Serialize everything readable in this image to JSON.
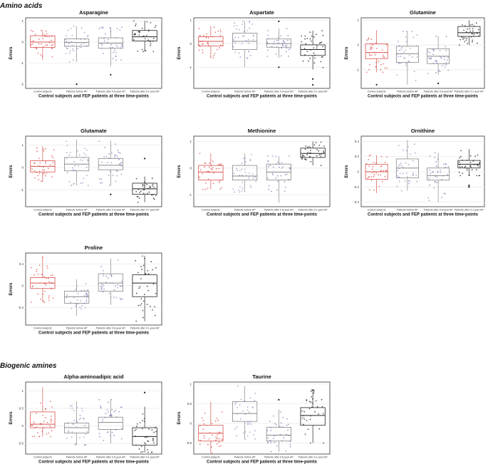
{
  "sections": [
    {
      "id": "amino",
      "label": "Amino acids"
    },
    {
      "id": "biogenic",
      "label": "Biogenic amines"
    }
  ],
  "colors": {
    "control": "#d9534f",
    "before": "#8e8ec0",
    "mid": "#7d7db8",
    "after": "#222222",
    "box_grey": "#888888",
    "grid": "#ebebeb"
  },
  "chart_data": [
    {
      "type": "boxplot",
      "title": "Asparagine",
      "xlabel": "Control subjects and FEP patients at three time-points",
      "ylabel": "Errors",
      "categories": [
        "Control subjects",
        "Patients before AP",
        "Patients after 0.6-year AP",
        "Patients after 0.1-year AP"
      ],
      "yticks": [
        1,
        0,
        -1,
        -2
      ],
      "ylim": [
        -2.2,
        1.15
      ],
      "boxes": [
        {
          "q1": -0.25,
          "median": 0.0,
          "q3": 0.3,
          "wlo": -0.85,
          "whi": 0.55,
          "outliers": []
        },
        {
          "q1": -0.2,
          "median": -0.02,
          "q3": 0.15,
          "wlo": -0.95,
          "whi": 0.75,
          "outliers": [
            -2.0
          ]
        },
        {
          "q1": -0.3,
          "median": -0.05,
          "q3": 0.2,
          "wlo": -1.15,
          "whi": 0.7,
          "outliers": [
            -1.55
          ]
        },
        {
          "q1": 0.05,
          "median": 0.25,
          "q3": 0.55,
          "wlo": -0.45,
          "whi": 1.0,
          "outliers": []
        }
      ]
    },
    {
      "type": "boxplot",
      "title": "Aspartate",
      "xlabel": "Control subjects and FEP patients at three time-points",
      "ylabel": "Errors",
      "categories": [
        "Control subjects",
        "Patients before AP",
        "Patients after 0.6-year AP",
        "Patients after 0.1-year AP"
      ],
      "yticks": [
        1,
        0,
        -1
      ],
      "ylim": [
        -1.9,
        1.1
      ],
      "boxes": [
        {
          "q1": -0.1,
          "median": 0.1,
          "q3": 0.3,
          "wlo": -0.6,
          "whi": 0.75,
          "outliers": []
        },
        {
          "q1": -0.25,
          "median": 0.1,
          "q3": 0.45,
          "wlo": -1.0,
          "whi": 0.95,
          "outliers": []
        },
        {
          "q1": -0.15,
          "median": 0.0,
          "q3": 0.2,
          "wlo": -0.6,
          "whi": 0.65,
          "outliers": [
            -1.0,
            0.95
          ]
        },
        {
          "q1": -0.5,
          "median": -0.25,
          "q3": -0.05,
          "wlo": -1.1,
          "whi": 0.55,
          "outliers": [
            -1.5,
            -1.75
          ]
        }
      ]
    },
    {
      "type": "boxplot",
      "title": "Glutamine",
      "xlabel": "Control subjects and FEP patients at three time-points",
      "ylabel": "Errors",
      "categories": [
        "Control subjects",
        "Patients before AP",
        "Patients after 0.6-year AP",
        "Patients after 0.1-year AP"
      ],
      "yticks": [
        1,
        0,
        -1
      ],
      "ylim": [
        -1.75,
        1.1
      ],
      "boxes": [
        {
          "q1": -0.55,
          "median": -0.3,
          "q3": 0.05,
          "wlo": -1.1,
          "whi": 0.6,
          "outliers": [
            -1.6
          ]
        },
        {
          "q1": -0.7,
          "median": -0.35,
          "q3": -0.05,
          "wlo": -1.6,
          "whi": 0.55,
          "outliers": []
        },
        {
          "q1": -0.75,
          "median": -0.45,
          "q3": -0.15,
          "wlo": -1.2,
          "whi": 0.35,
          "outliers": [
            -1.55
          ]
        },
        {
          "q1": 0.35,
          "median": 0.5,
          "q3": 0.75,
          "wlo": 0.0,
          "whi": 1.0,
          "outliers": []
        }
      ]
    },
    {
      "type": "boxplot",
      "title": "Glutamate",
      "xlabel": "Control subjects and FEP patients at three time-points",
      "ylabel": "Errors",
      "categories": [
        "Control subjects",
        "Patients before AP",
        "Patients after 0.6-year AP",
        "Patients after 0.1-year AP"
      ],
      "yticks": [
        1,
        0,
        -1
      ],
      "ylim": [
        -1.75,
        1.4
      ],
      "boxes": [
        {
          "q1": -0.2,
          "median": 0.05,
          "q3": 0.3,
          "wlo": -0.65,
          "whi": 0.95,
          "outliers": []
        },
        {
          "q1": -0.15,
          "median": 0.15,
          "q3": 0.45,
          "wlo": -0.8,
          "whi": 1.25,
          "outliers": []
        },
        {
          "q1": -0.1,
          "median": 0.1,
          "q3": 0.4,
          "wlo": -0.8,
          "whi": 1.2,
          "outliers": [
            -1.2
          ]
        },
        {
          "q1": -1.2,
          "median": -0.95,
          "q3": -0.7,
          "wlo": -1.55,
          "whi": -0.4,
          "outliers": [
            0.4
          ]
        }
      ]
    },
    {
      "type": "boxplot",
      "title": "Methionine",
      "xlabel": "Control subjects and FEP patients at three time-points",
      "ylabel": "Errors",
      "categories": [
        "Control subjects",
        "Patients before AP",
        "Patients after 0.6-year AP",
        "Patients after 0.1-year AP"
      ],
      "yticks": [
        1,
        0,
        -1
      ],
      "ylim": [
        -1.45,
        1.2
      ],
      "boxes": [
        {
          "q1": -0.45,
          "median": -0.15,
          "q3": 0.1,
          "wlo": -0.8,
          "whi": 0.55,
          "outliers": []
        },
        {
          "q1": -0.45,
          "median": -0.3,
          "q3": 0.1,
          "wlo": -0.9,
          "whi": 0.55,
          "outliers": []
        },
        {
          "q1": -0.45,
          "median": -0.15,
          "q3": 0.15,
          "wlo": -1.3,
          "whi": 0.45,
          "outliers": []
        },
        {
          "q1": 0.4,
          "median": 0.55,
          "q3": 0.75,
          "wlo": 0.1,
          "whi": 1.0,
          "outliers": []
        }
      ]
    },
    {
      "type": "boxplot",
      "title": "Ornithine",
      "xlabel": "Control subjects and FEP patients at three time-points",
      "ylabel": "Errors",
      "categories": [
        "Control subjects",
        "Patients before AP",
        "Patients after 0.6-year AP",
        "Patients after 0.1-year AP"
      ],
      "yticks": [
        0.4,
        0.2,
        0.0,
        -0.2,
        -0.4
      ],
      "ylim": [
        -0.46,
        0.47
      ],
      "boxes": [
        {
          "q1": -0.1,
          "median": 0.0,
          "q3": 0.1,
          "wlo": -0.28,
          "whi": 0.22,
          "outliers": []
        },
        {
          "q1": -0.08,
          "median": 0.05,
          "q3": 0.17,
          "wlo": -0.25,
          "whi": 0.42,
          "outliers": []
        },
        {
          "q1": -0.11,
          "median": -0.05,
          "q3": 0.05,
          "wlo": -0.4,
          "whi": 0.25,
          "outliers": []
        },
        {
          "q1": 0.05,
          "median": 0.1,
          "q3": 0.15,
          "wlo": -0.05,
          "whi": 0.3,
          "outliers": [
            -0.18,
            -0.2
          ]
        }
      ]
    },
    {
      "type": "boxplot",
      "title": "Proline",
      "xlabel": "Control subjects and FEP patients at three time-points",
      "ylabel": "Errors",
      "categories": [
        "Control subjects",
        "Patients before AP",
        "Patients after 0.6-year AP",
        "Patients after 0.1-year AP"
      ],
      "yticks": [
        0.4,
        0.0,
        -0.4
      ],
      "ylim": [
        -0.72,
        0.6
      ],
      "boxes": [
        {
          "q1": -0.05,
          "median": 0.05,
          "q3": 0.15,
          "wlo": -0.3,
          "whi": 0.55,
          "outliers": []
        },
        {
          "q1": -0.32,
          "median": -0.2,
          "q3": -0.1,
          "wlo": -0.55,
          "whi": 0.12,
          "outliers": []
        },
        {
          "q1": -0.1,
          "median": 0.05,
          "q3": 0.22,
          "wlo": -0.35,
          "whi": 0.5,
          "outliers": []
        },
        {
          "q1": -0.2,
          "median": 0.05,
          "q3": 0.2,
          "wlo": -0.65,
          "whi": 0.55,
          "outliers": []
        }
      ]
    },
    {
      "type": "boxplot",
      "title": "Alpha-aminoadipic acid",
      "xlabel": "Control subjects and FEP patients at three time-points",
      "ylabel": "Errors",
      "categories": [
        "Control subjects",
        "Patients before AP",
        "Patients after 0.6-year AP",
        "Patients after 0.1-year AP"
      ],
      "yticks": [
        1.0,
        0.5,
        0.0,
        -0.5
      ],
      "ylim": [
        -0.8,
        1.25
      ],
      "boxes": [
        {
          "q1": -0.05,
          "median": 0.05,
          "q3": 0.4,
          "wlo": -0.3,
          "whi": 1.1,
          "outliers": []
        },
        {
          "q1": -0.2,
          "median": -0.05,
          "q3": 0.08,
          "wlo": -0.55,
          "whi": 0.7,
          "outliers": []
        },
        {
          "q1": -0.1,
          "median": 0.1,
          "q3": 0.25,
          "wlo": -0.5,
          "whi": 0.75,
          "outliers": []
        },
        {
          "q1": -0.55,
          "median": -0.3,
          "q3": -0.05,
          "wlo": -0.75,
          "whi": 0.55,
          "outliers": [
            0.95
          ]
        }
      ]
    },
    {
      "type": "boxplot",
      "title": "Taurine",
      "xlabel": "Control subjects and FEP patients at three time-points",
      "ylabel": "Errors",
      "categories": [
        "Control subjects",
        "Patients before AP",
        "Patients after 0.6-year AP",
        "Patients after 0.1-year AP"
      ],
      "yticks": [
        1.0,
        0.5,
        0.0,
        -0.5
      ],
      "ylim": [
        -0.78,
        1.05
      ],
      "boxes": [
        {
          "q1": -0.45,
          "median": -0.25,
          "q3": -0.05,
          "wlo": -0.75,
          "whi": 0.55,
          "outliers": []
        },
        {
          "q1": 0.05,
          "median": 0.25,
          "q3": 0.55,
          "wlo": -0.4,
          "whi": 0.95,
          "outliers": []
        },
        {
          "q1": -0.45,
          "median": -0.3,
          "q3": -0.1,
          "wlo": -0.72,
          "whi": 0.35,
          "outliers": [
            0.6
          ]
        },
        {
          "q1": -0.05,
          "median": 0.2,
          "q3": 0.4,
          "wlo": -0.5,
          "whi": 0.85,
          "outliers": []
        }
      ]
    }
  ]
}
